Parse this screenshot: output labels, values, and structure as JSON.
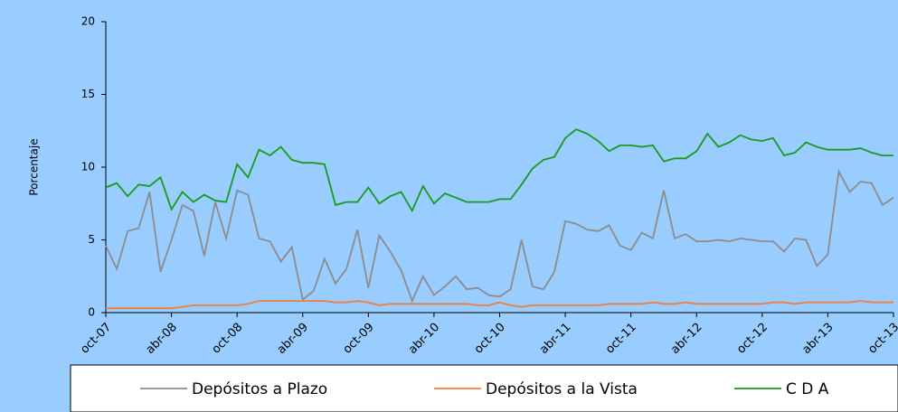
{
  "chart_data": {
    "type": "line",
    "y_label": "Porcentaje",
    "categories": [
      "oct-07",
      null,
      null,
      null,
      null,
      null,
      "abr-08",
      null,
      null,
      null,
      null,
      null,
      "oct-08",
      null,
      null,
      null,
      null,
      null,
      "abr-09",
      null,
      null,
      null,
      null,
      null,
      "oct-09",
      null,
      null,
      null,
      null,
      null,
      "abr-10",
      null,
      null,
      null,
      null,
      null,
      "oct-10",
      null,
      null,
      null,
      null,
      null,
      "abr-11",
      null,
      null,
      null,
      null,
      null,
      "oct-11",
      null,
      null,
      null,
      null,
      null,
      "abr-12",
      null,
      null,
      null,
      null,
      null,
      "oct-12",
      null,
      null,
      null,
      null,
      null,
      "abr-13",
      null,
      null,
      null,
      null,
      null,
      "oct-13"
    ],
    "series": [
      {
        "name": "Depósitos a Plazo",
        "color": "#8c8c8c",
        "values": [
          4.6,
          3.0,
          5.6,
          5.8,
          8.3,
          2.8,
          5.0,
          7.4,
          7.0,
          3.9,
          7.6,
          5.1,
          8.4,
          8.1,
          5.1,
          4.9,
          3.5,
          4.5,
          0.9,
          1.5,
          3.7,
          2.0,
          3.0,
          5.7,
          1.7,
          5.3,
          4.2,
          2.9,
          0.8,
          2.5,
          1.2,
          1.8,
          2.5,
          1.6,
          1.7,
          1.2,
          1.1,
          1.6,
          5.0,
          1.8,
          1.6,
          2.8,
          6.3,
          6.1,
          5.7,
          5.6,
          6.0,
          4.6,
          4.3,
          5.5,
          5.1,
          8.4,
          5.1,
          5.4,
          4.9,
          4.9,
          5.0,
          4.9,
          5.1,
          5.0,
          4.9,
          4.9,
          4.2,
          5.1,
          5.0,
          3.2,
          4.0,
          9.7,
          8.3,
          9.0,
          8.9,
          7.4,
          7.9
        ]
      },
      {
        "name": "Depósitos a la Vista",
        "color": "#f07f3a",
        "values": [
          0.3,
          0.3,
          0.3,
          0.3,
          0.3,
          0.3,
          0.3,
          0.4,
          0.5,
          0.5,
          0.5,
          0.5,
          0.5,
          0.6,
          0.8,
          0.8,
          0.8,
          0.8,
          0.8,
          0.8,
          0.8,
          0.7,
          0.7,
          0.8,
          0.7,
          0.5,
          0.6,
          0.6,
          0.6,
          0.6,
          0.6,
          0.6,
          0.6,
          0.6,
          0.5,
          0.5,
          0.7,
          0.5,
          0.4,
          0.5,
          0.5,
          0.5,
          0.5,
          0.5,
          0.5,
          0.5,
          0.6,
          0.6,
          0.6,
          0.6,
          0.7,
          0.6,
          0.6,
          0.7,
          0.6,
          0.6,
          0.6,
          0.6,
          0.6,
          0.6,
          0.6,
          0.7,
          0.7,
          0.6,
          0.7,
          0.7,
          0.7,
          0.7,
          0.7,
          0.8,
          0.7,
          0.7,
          0.7
        ]
      },
      {
        "name": "C D A",
        "color": "#1a9a1a",
        "values": [
          8.6,
          8.9,
          8.0,
          8.8,
          8.7,
          9.3,
          7.1,
          8.3,
          7.6,
          8.1,
          7.7,
          7.6,
          10.2,
          9.3,
          11.2,
          10.8,
          11.4,
          10.5,
          10.3,
          10.3,
          10.2,
          7.4,
          7.6,
          7.6,
          8.6,
          7.5,
          8.0,
          8.3,
          7.0,
          8.7,
          7.5,
          8.2,
          7.9,
          7.6,
          7.6,
          7.6,
          7.8,
          7.8,
          8.8,
          9.9,
          10.5,
          10.7,
          12.0,
          12.6,
          12.3,
          11.8,
          11.1,
          11.5,
          11.5,
          11.4,
          11.5,
          10.4,
          10.6,
          10.6,
          11.1,
          12.3,
          11.4,
          11.7,
          12.2,
          11.9,
          11.8,
          12.0,
          10.8,
          11.0,
          11.7,
          11.4,
          11.2,
          11.2,
          11.2,
          11.3,
          11.0,
          10.8,
          10.8
        ]
      }
    ],
    "ylim": [
      0,
      20
    ],
    "yticks": [
      0,
      5,
      10,
      15,
      20
    ]
  }
}
